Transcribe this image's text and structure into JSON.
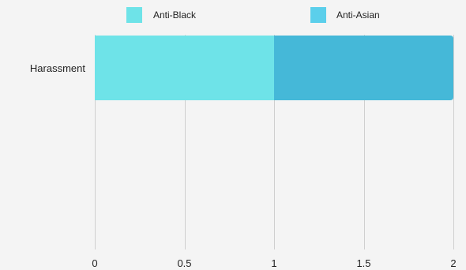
{
  "chart_data": {
    "type": "bar",
    "orientation": "horizontal",
    "stacked": true,
    "categories": [
      "Harassment"
    ],
    "series": [
      {
        "name": "Anti-Black",
        "values": [
          1
        ],
        "color": "#6ee3e8"
      },
      {
        "name": "Anti-Asian",
        "values": [
          1
        ],
        "color": "#45b8d8"
      }
    ],
    "legend_swatch_colors": [
      "#6ee3e8",
      "#5bcfeb"
    ],
    "xlim": [
      0,
      2
    ],
    "xticks": [
      0,
      0.5,
      1,
      1.5,
      2
    ],
    "xtick_labels": [
      "0",
      "0.5",
      "1",
      "1.5",
      "2"
    ],
    "grid": "vertical",
    "legend_position": "top"
  }
}
